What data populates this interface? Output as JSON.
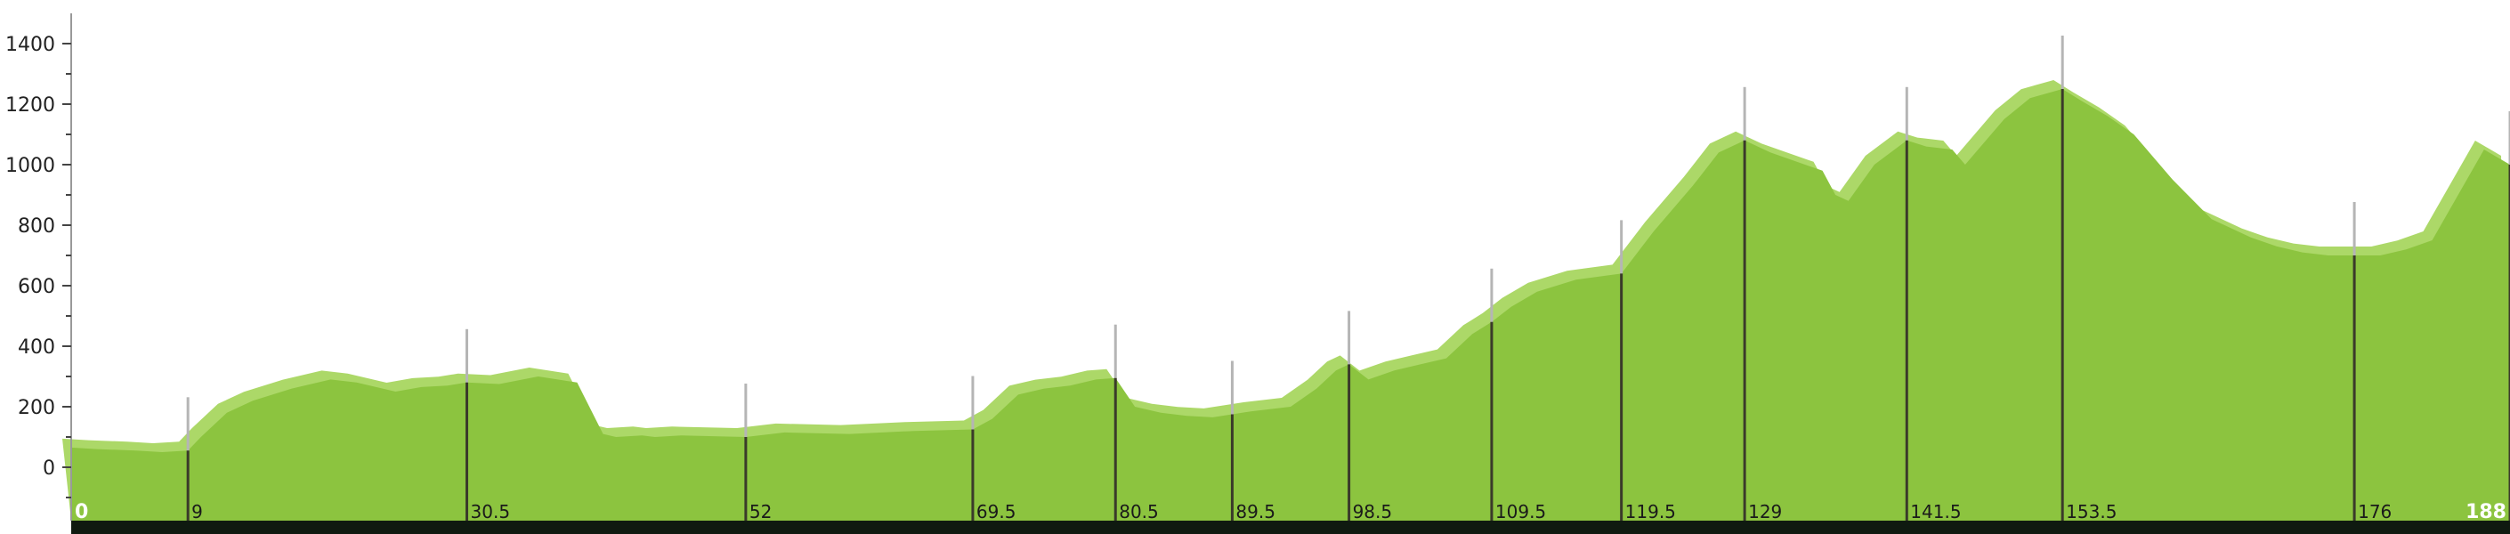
{
  "colors": {
    "profile_fill": "#8cc43f",
    "profile_highlight": "#acd868",
    "marker_line": "#3a3a2a",
    "marker_tick": "#b5b5b5",
    "axis": "#999999",
    "baseline_bar": "#0f1a10"
  },
  "chart_data": {
    "type": "area",
    "title": "",
    "xlabel": "",
    "ylabel": "",
    "xlim": [
      0,
      188
    ],
    "ylim": [
      -150,
      1450
    ],
    "yticks": [
      0,
      200,
      400,
      600,
      800,
      1000,
      1200,
      1400
    ],
    "ytick_labels": [
      "0",
      "200",
      "400",
      "600",
      "800",
      "1000",
      "1200",
      "1400"
    ],
    "km_markers": [
      0,
      9,
      30.5,
      52,
      69.5,
      80.5,
      89.5,
      98.5,
      109.5,
      119.5,
      129,
      141.5,
      153.5,
      176,
      188
    ],
    "km_labels": [
      "0",
      "9",
      "30.5",
      "52",
      "69.5",
      "80.5",
      "89.5",
      "98.5",
      "109.5",
      "119.5",
      "129",
      "141.5",
      "153.5",
      "176",
      "188"
    ],
    "series": [
      {
        "x": [
          0,
          2,
          5,
          7,
          9,
          10,
          12,
          14,
          17,
          20,
          22,
          25,
          27,
          29,
          30.5,
          33,
          36,
          37.5,
          39,
          41,
          42,
          44,
          45,
          47,
          52,
          55,
          60,
          65,
          69.5,
          71,
          73,
          75,
          77,
          79,
          80.5,
          82,
          84,
          86,
          88,
          89.5,
          91,
          94,
          96,
          97.5,
          98.5,
          100,
          102,
          104,
          106,
          108,
          109.5,
          111,
          113,
          116,
          119.5,
          122,
          125,
          127,
          129,
          131,
          133,
          135,
          136,
          137,
          139,
          141.5,
          143,
          145,
          146,
          147,
          149,
          151,
          153.5,
          155,
          157,
          159,
          162,
          165,
          168,
          170,
          172,
          174,
          176,
          178,
          180,
          182,
          184,
          186,
          188
        ],
        "y": [
          65,
          60,
          55,
          50,
          55,
          100,
          180,
          220,
          260,
          290,
          280,
          250,
          265,
          270,
          280,
          275,
          300,
          290,
          280,
          110,
          100,
          105,
          100,
          105,
          100,
          115,
          110,
          120,
          125,
          160,
          240,
          260,
          270,
          290,
          295,
          200,
          180,
          170,
          165,
          175,
          185,
          200,
          260,
          320,
          340,
          290,
          320,
          340,
          360,
          440,
          480,
          530,
          580,
          620,
          640,
          780,
          930,
          1040,
          1080,
          1040,
          1010,
          980,
          900,
          880,
          1000,
          1080,
          1060,
          1050,
          1000,
          1050,
          1150,
          1220,
          1250,
          1210,
          1160,
          1100,
          950,
          820,
          760,
          730,
          710,
          700,
          700,
          700,
          720,
          750,
          900,
          1050,
          1000
        ]
      }
    ]
  }
}
